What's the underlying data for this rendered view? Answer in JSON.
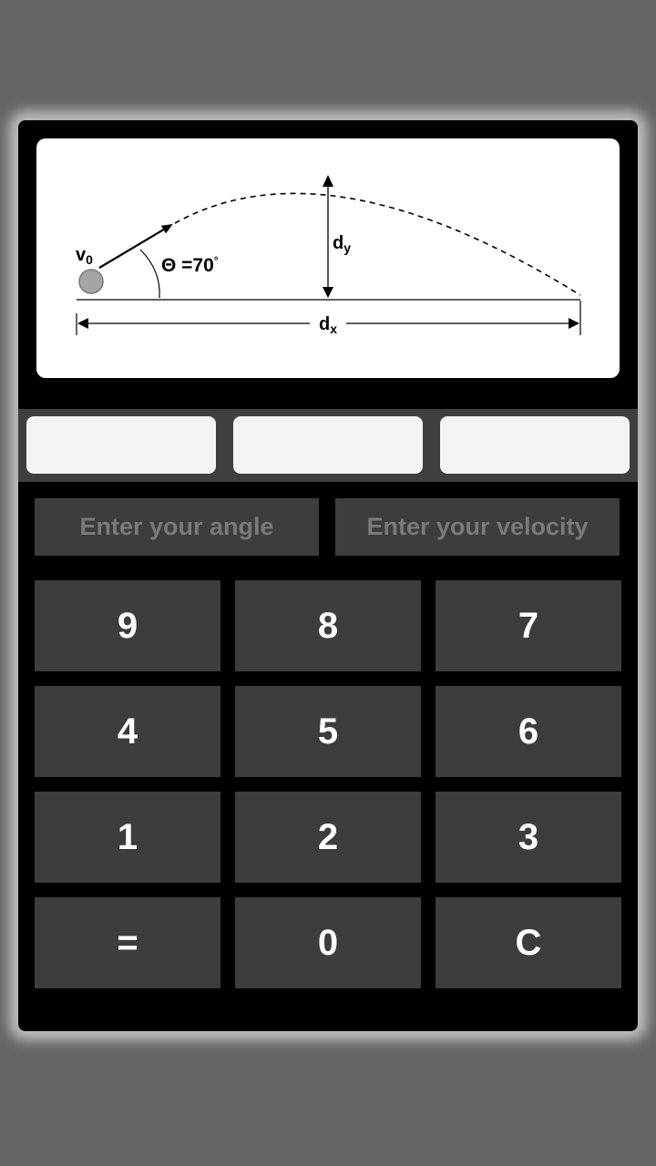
{
  "diagram": {
    "v0_label": "v",
    "v0_sub": "0",
    "angle_label": "Θ =70",
    "angle_unit": "°",
    "dy_label": "d",
    "dy_sub": "y",
    "dx_label": "d",
    "dx_sub": "x"
  },
  "results": [
    {
      "value": ""
    },
    {
      "value": ""
    },
    {
      "value": ""
    }
  ],
  "inputs": {
    "angle": {
      "value": "",
      "placeholder": "Enter your angle"
    },
    "velocity": {
      "value": "",
      "placeholder": "Enter your velocity"
    }
  },
  "keypad": {
    "rows": [
      [
        "9",
        "8",
        "7"
      ],
      [
        "4",
        "5",
        "6"
      ],
      [
        "1",
        "2",
        "3"
      ],
      [
        "=",
        "0",
        "C"
      ]
    ]
  },
  "colors": {
    "background": "#666666",
    "card": "#000000",
    "key": "#3d3d3d",
    "result_box": "#f4f4f4",
    "strip": "#3f3f3f"
  }
}
